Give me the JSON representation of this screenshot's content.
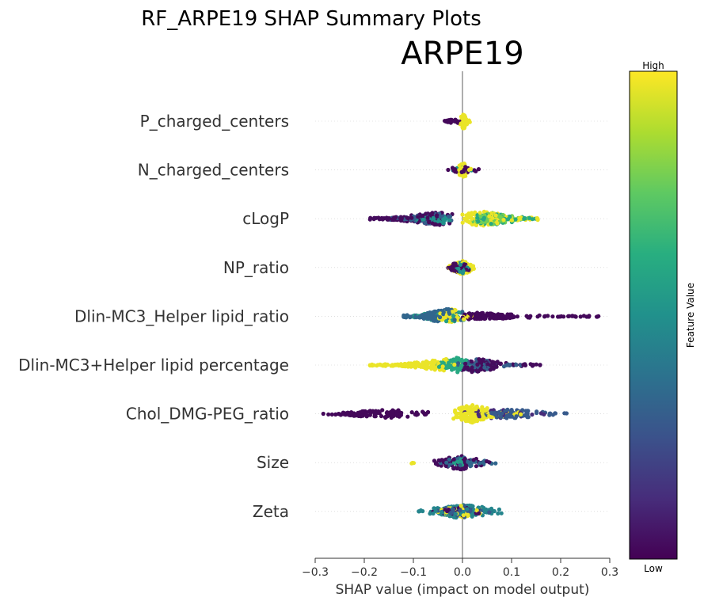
{
  "chart_data": {
    "type": "scatter",
    "subtype": "shap-beeswarm",
    "suptitle": "RF_ARPE19 SHAP Summary Plots",
    "title": "ARPE19",
    "xlabel": "SHAP value (impact on model output)",
    "xlim": [
      -0.3,
      0.3
    ],
    "xticks": [
      "−0.3",
      "−0.2",
      "−0.1",
      "0.0",
      "0.1",
      "0.2",
      "0.3"
    ],
    "colorbar": {
      "label": "Feature Value",
      "high": "High",
      "low": "Low",
      "colormap": "viridis"
    },
    "features": [
      {
        "name": "P_charged_centers",
        "groups": [
          {
            "from": -0.04,
            "to": -0.005,
            "peak": -0.015,
            "spread": 0.12,
            "n": 30,
            "color": 0.02
          },
          {
            "from": -0.005,
            "to": 0.015,
            "peak": 0.002,
            "spread": 0.35,
            "n": 55,
            "color": 0.97
          }
        ]
      },
      {
        "name": "N_charged_centers",
        "groups": [
          {
            "from": -0.03,
            "to": 0.045,
            "peak": 0.0,
            "spread": 0.15,
            "n": 30,
            "color": 0.02
          },
          {
            "from": -0.01,
            "to": 0.02,
            "peak": 0.002,
            "spread": 0.35,
            "n": 50,
            "color": 0.97
          },
          {
            "from": -0.02,
            "to": 0.02,
            "peak": 0.0,
            "spread": 0.15,
            "n": 10,
            "color": 0.5
          }
        ]
      },
      {
        "name": "cLogP",
        "groups": [
          {
            "from": -0.2,
            "to": -0.02,
            "peak": -0.05,
            "spread": 0.28,
            "n": 130,
            "color": 0.03
          },
          {
            "from": -0.15,
            "to": -0.02,
            "peak": -0.05,
            "spread": 0.28,
            "n": 70,
            "color": 0.3
          },
          {
            "from": -0.1,
            "to": -0.02,
            "peak": -0.04,
            "spread": 0.2,
            "n": 40,
            "color": 0.5
          },
          {
            "from": 0.0,
            "to": 0.155,
            "peak": 0.04,
            "spread": 0.32,
            "n": 120,
            "color": 0.97
          },
          {
            "from": 0.02,
            "to": 0.155,
            "peak": 0.06,
            "spread": 0.28,
            "n": 70,
            "color": 0.6
          },
          {
            "from": 0.02,
            "to": 0.14,
            "peak": 0.06,
            "spread": 0.25,
            "n": 50,
            "color": 0.78
          }
        ]
      },
      {
        "name": "NP_ratio",
        "groups": [
          {
            "from": -0.03,
            "to": 0.025,
            "peak": 0.0,
            "spread": 0.3,
            "n": 70,
            "color": 0.97
          },
          {
            "from": -0.03,
            "to": 0.02,
            "peak": -0.005,
            "spread": 0.28,
            "n": 50,
            "color": 0.03
          },
          {
            "from": -0.02,
            "to": 0.02,
            "peak": 0.0,
            "spread": 0.25,
            "n": 30,
            "color": 0.5
          }
        ]
      },
      {
        "name": "Dlin-MC3_Helper lipid_ratio",
        "groups": [
          {
            "from": 0.0,
            "to": 0.28,
            "peak": 0.03,
            "spread": 0.15,
            "n": 140,
            "color": 0.02
          },
          {
            "from": -0.12,
            "to": 0.0,
            "peak": -0.03,
            "spread": 0.32,
            "n": 110,
            "color": 0.33
          },
          {
            "from": -0.1,
            "to": 0.02,
            "peak": -0.03,
            "spread": 0.3,
            "n": 70,
            "color": 0.55
          },
          {
            "from": -0.06,
            "to": 0.02,
            "peak": -0.02,
            "spread": 0.3,
            "n": 60,
            "color": 0.97
          }
        ]
      },
      {
        "name": "Dlin-MC3+Helper lipid percentage",
        "groups": [
          {
            "from": -0.19,
            "to": -0.005,
            "peak": -0.03,
            "spread": 0.26,
            "n": 150,
            "color": 0.97
          },
          {
            "from": -0.06,
            "to": 0.02,
            "peak": -0.01,
            "spread": 0.32,
            "n": 70,
            "color": 0.6
          },
          {
            "from": -0.01,
            "to": 0.165,
            "peak": 0.02,
            "spread": 0.3,
            "n": 120,
            "color": 0.03
          },
          {
            "from": -0.01,
            "to": 0.12,
            "peak": 0.03,
            "spread": 0.25,
            "n": 60,
            "color": 0.3
          }
        ]
      },
      {
        "name": "Chol_DMG-PEG_ratio",
        "groups": [
          {
            "from": -0.285,
            "to": -0.07,
            "peak": -0.15,
            "spread": 0.18,
            "n": 140,
            "color": 0.02
          },
          {
            "from": -0.02,
            "to": 0.12,
            "peak": 0.02,
            "spread": 0.38,
            "n": 150,
            "color": 0.97
          },
          {
            "from": 0.04,
            "to": 0.215,
            "peak": 0.1,
            "spread": 0.2,
            "n": 90,
            "color": 0.28
          },
          {
            "from": 0.0,
            "to": 0.18,
            "peak": 0.07,
            "spread": 0.2,
            "n": 40,
            "color": 0.12
          }
        ]
      },
      {
        "name": "Size",
        "groups": [
          {
            "from": -0.06,
            "to": 0.06,
            "peak": -0.005,
            "spread": 0.3,
            "n": 80,
            "color": 0.03
          },
          {
            "from": -0.05,
            "to": 0.07,
            "peak": 0.0,
            "spread": 0.22,
            "n": 50,
            "color": 0.33
          },
          {
            "from": -0.02,
            "to": 0.02,
            "peak": 0.0,
            "spread": 0.15,
            "n": 25,
            "color": 0.55
          },
          {
            "from": -0.11,
            "to": -0.095,
            "peak": -0.1,
            "spread": 0.05,
            "n": 3,
            "color": 0.97
          }
        ]
      },
      {
        "name": "Zeta",
        "groups": [
          {
            "from": -0.09,
            "to": 0.085,
            "peak": 0.0,
            "spread": 0.3,
            "n": 140,
            "color": 0.45
          },
          {
            "from": -0.05,
            "to": 0.06,
            "peak": 0.0,
            "spread": 0.28,
            "n": 70,
            "color": 0.28
          },
          {
            "from": -0.05,
            "to": 0.05,
            "peak": 0.0,
            "spread": 0.25,
            "n": 60,
            "color": 0.97
          },
          {
            "from": -0.06,
            "to": 0.05,
            "peak": 0.0,
            "spread": 0.22,
            "n": 40,
            "color": 0.03
          }
        ]
      }
    ]
  }
}
